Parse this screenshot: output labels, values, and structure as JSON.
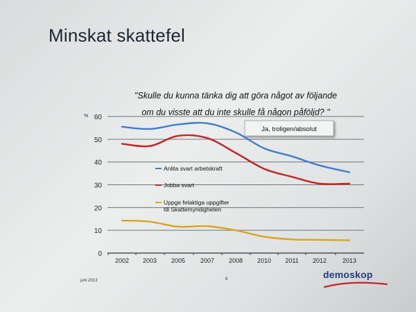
{
  "slide": {
    "title": "Minskat skattefel",
    "question_line1": "\"Skulle du kunna tänka dig att göra något av följande",
    "question_line2": "om du visste att du inte skulle få någon påföljd? \"",
    "footer_date": "juni 2013",
    "page_number": "8",
    "logo": "demoskop"
  },
  "colors": {
    "series_blue": "#3b7ed1",
    "series_red": "#cc1f1f",
    "series_gold": "#d9a520",
    "logo_blue": "#1f3d82",
    "logo_red": "#c8202a"
  },
  "chart_data": {
    "type": "line",
    "ylabel": "%",
    "ylim": [
      0,
      60
    ],
    "yticks": [
      0,
      10,
      20,
      30,
      40,
      50,
      60
    ],
    "x": [
      2002,
      2003,
      2005,
      2007,
      2008,
      2010,
      2011,
      2012,
      2013
    ],
    "x_tick_labels": [
      "2002",
      "2003",
      "2005",
      "2007",
      "2008",
      "2010",
      "2011",
      "2012",
      "2013"
    ],
    "grid": true,
    "annotation": "Ja, troligen/absolut",
    "series": [
      {
        "name": "Anlita svart arbetskraft",
        "color": "#3b7ed1",
        "values": [
          55.5,
          54.5,
          56.5,
          57,
          53,
          46,
          42.5,
          38.5,
          35.5
        ]
      },
      {
        "name": "Jobba svart",
        "color": "#cc1f1f",
        "values": [
          48,
          47,
          51.5,
          50.5,
          44,
          37,
          33.5,
          30.5,
          30.5
        ]
      },
      {
        "name": "Uppge felaktiga uppgifter till Skattemyndigheten",
        "color": "#d9a520",
        "values": [
          14.3,
          13.8,
          11.6,
          11.8,
          10,
          7.2,
          6,
          5.8,
          5.6
        ]
      }
    ],
    "legend": [
      {
        "line1": "Anlita svart arbetskraft",
        "line2": ""
      },
      {
        "line1": "Jobba svart",
        "line2": ""
      },
      {
        "line1": "Uppge felaktiga uppgifter",
        "line2": "till Skattemyndigheten"
      }
    ]
  }
}
